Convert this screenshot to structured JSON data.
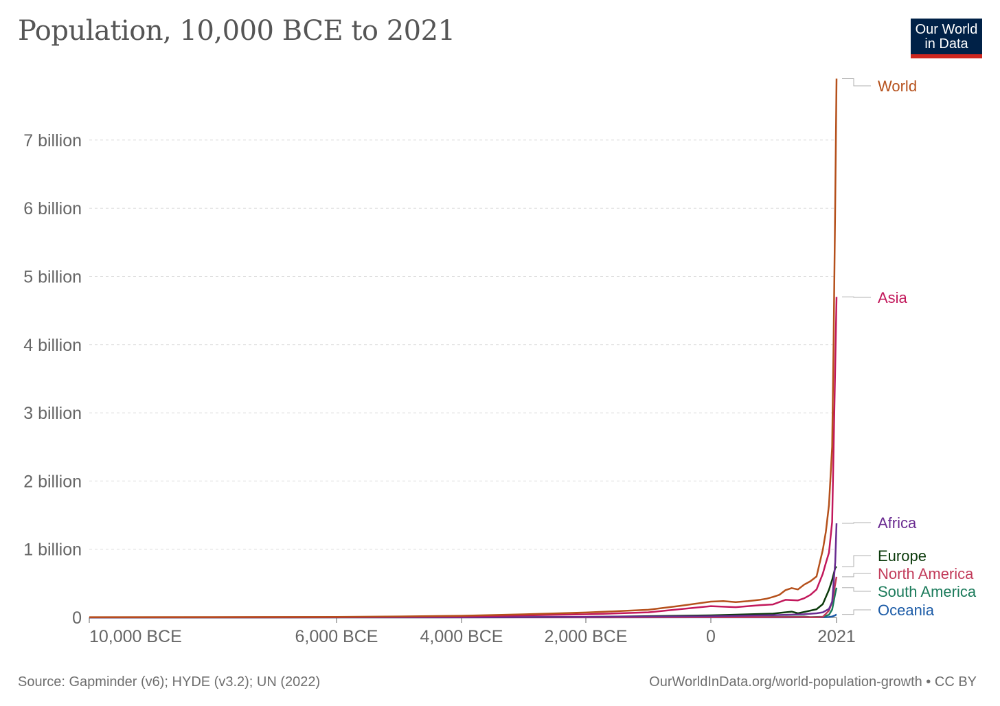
{
  "header": {
    "title": "Population, 10,000 BCE to 2021",
    "logo_line1": "Our World",
    "logo_line2": "in Data"
  },
  "footer": {
    "source": "Source: Gapminder (v6); HYDE (v3.2); UN (2022)",
    "credit": "OurWorldInData.org/world-population-growth • CC BY"
  },
  "colors": {
    "World": "#b5501b",
    "Asia": "#c2185b",
    "Africa": "#6a2c91",
    "Europe": "#0b3a0b",
    "North America": "#c23b5a",
    "South America": "#1a7a5a",
    "Oceania": "#1a5aa6",
    "grid": "#dcdcdc",
    "axis_text": "#666666"
  },
  "chart_data": {
    "type": "line",
    "title": "Population, 10,000 BCE to 2021",
    "xlabel": "",
    "ylabel": "",
    "x_scale": "irregular (labelled ticks only)",
    "xticks": [
      {
        "year": -10000,
        "label": "10,000 BCE"
      },
      {
        "year": -6000,
        "label": "6,000 BCE"
      },
      {
        "year": -4000,
        "label": "4,000 BCE"
      },
      {
        "year": -2000,
        "label": "2,000 BCE"
      },
      {
        "year": 0,
        "label": "0"
      },
      {
        "year": 2021,
        "label": "2021"
      }
    ],
    "ylim": [
      0,
      8000000000
    ],
    "yticks": [
      {
        "value": 0,
        "label": "0"
      },
      {
        "value": 1000000000,
        "label": "1 billion"
      },
      {
        "value": 2000000000,
        "label": "2 billion"
      },
      {
        "value": 3000000000,
        "label": "3 billion"
      },
      {
        "value": 4000000000,
        "label": "4 billion"
      },
      {
        "value": 5000000000,
        "label": "5 billion"
      },
      {
        "value": 6000000000,
        "label": "6 billion"
      },
      {
        "value": 7000000000,
        "label": "7 billion"
      }
    ],
    "grid": true,
    "legend": "line end labels (right)",
    "series": [
      {
        "name": "World",
        "points": [
          [
            -10000,
            4500000
          ],
          [
            -8000,
            5000000
          ],
          [
            -6000,
            8000000
          ],
          [
            -5000,
            14000000
          ],
          [
            -4000,
            24000000
          ],
          [
            -3000,
            45000000
          ],
          [
            -2000,
            72000000
          ],
          [
            -1000,
            112000000
          ],
          [
            -500,
            168000000
          ],
          [
            0,
            232000000
          ],
          [
            200,
            240000000
          ],
          [
            400,
            225000000
          ],
          [
            600,
            240000000
          ],
          [
            800,
            260000000
          ],
          [
            900,
            275000000
          ],
          [
            1000,
            300000000
          ],
          [
            1100,
            330000000
          ],
          [
            1200,
            400000000
          ],
          [
            1300,
            430000000
          ],
          [
            1400,
            410000000
          ],
          [
            1500,
            480000000
          ],
          [
            1600,
            530000000
          ],
          [
            1700,
            600000000
          ],
          [
            1750,
            800000000
          ],
          [
            1800,
            990000000
          ],
          [
            1850,
            1260000000
          ],
          [
            1900,
            1650000000
          ],
          [
            1950,
            2500000000
          ],
          [
            1975,
            4100000000
          ],
          [
            2000,
            6100000000
          ],
          [
            2021,
            7900000000
          ]
        ]
      },
      {
        "name": "Asia",
        "points": [
          [
            -10000,
            2000000
          ],
          [
            -6000,
            4000000
          ],
          [
            -4000,
            14000000
          ],
          [
            -2000,
            45000000
          ],
          [
            -1000,
            75000000
          ],
          [
            0,
            165000000
          ],
          [
            400,
            150000000
          ],
          [
            800,
            180000000
          ],
          [
            1000,
            190000000
          ],
          [
            1200,
            258000000
          ],
          [
            1400,
            250000000
          ],
          [
            1500,
            280000000
          ],
          [
            1600,
            330000000
          ],
          [
            1700,
            410000000
          ],
          [
            1800,
            640000000
          ],
          [
            1850,
            800000000
          ],
          [
            1900,
            950000000
          ],
          [
            1950,
            1400000000
          ],
          [
            2000,
            3700000000
          ],
          [
            2021,
            4700000000
          ]
        ]
      },
      {
        "name": "Africa",
        "points": [
          [
            -10000,
            500000
          ],
          [
            -4000,
            3000000
          ],
          [
            -2000,
            8000000
          ],
          [
            0,
            16000000
          ],
          [
            1000,
            33000000
          ],
          [
            1500,
            46000000
          ],
          [
            1700,
            60000000
          ],
          [
            1800,
            75000000
          ],
          [
            1900,
            125000000
          ],
          [
            1950,
            230000000
          ],
          [
            2000,
            810000000
          ],
          [
            2021,
            1380000000
          ]
        ]
      },
      {
        "name": "Europe",
        "points": [
          [
            -10000,
            500000
          ],
          [
            -4000,
            3000000
          ],
          [
            -2000,
            7000000
          ],
          [
            0,
            30000000
          ],
          [
            1000,
            55000000
          ],
          [
            1300,
            85000000
          ],
          [
            1400,
            60000000
          ],
          [
            1500,
            80000000
          ],
          [
            1700,
            120000000
          ],
          [
            1800,
            195000000
          ],
          [
            1900,
            405000000
          ],
          [
            1950,
            550000000
          ],
          [
            2000,
            725000000
          ],
          [
            2021,
            745000000
          ]
        ]
      },
      {
        "name": "North America",
        "points": [
          [
            -10000,
            100000
          ],
          [
            0,
            2000000
          ],
          [
            1000,
            4000000
          ],
          [
            1500,
            6000000
          ],
          [
            1600,
            3000000
          ],
          [
            1700,
            3000000
          ],
          [
            1800,
            7000000
          ],
          [
            1900,
            100000000
          ],
          [
            1950,
            230000000
          ],
          [
            2000,
            490000000
          ],
          [
            2021,
            595000000
          ]
        ]
      },
      {
        "name": "South America",
        "points": [
          [
            -10000,
            100000
          ],
          [
            0,
            3000000
          ],
          [
            1000,
            8000000
          ],
          [
            1500,
            12000000
          ],
          [
            1600,
            5000000
          ],
          [
            1800,
            10000000
          ],
          [
            1900,
            38000000
          ],
          [
            1950,
            115000000
          ],
          [
            2000,
            350000000
          ],
          [
            2021,
            435000000
          ]
        ]
      },
      {
        "name": "Oceania",
        "points": [
          [
            -10000,
            100000
          ],
          [
            0,
            1000000
          ],
          [
            1500,
            2000000
          ],
          [
            1800,
            2000000
          ],
          [
            1900,
            6000000
          ],
          [
            1950,
            13000000
          ],
          [
            2000,
            31000000
          ],
          [
            2021,
            44000000
          ]
        ]
      }
    ]
  }
}
